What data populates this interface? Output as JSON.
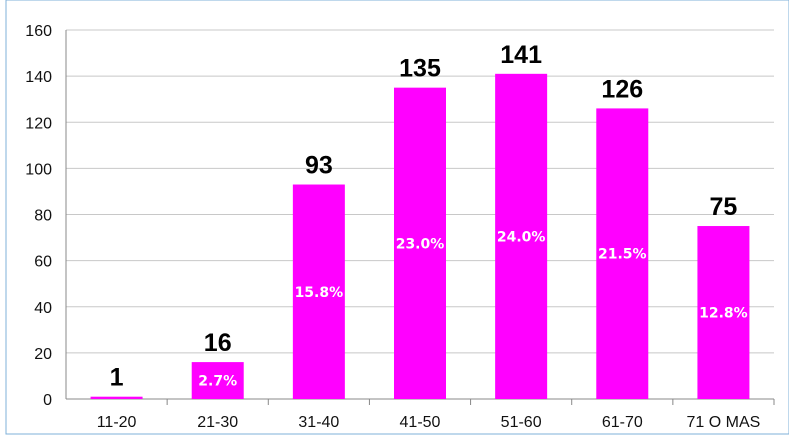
{
  "chart_data": {
    "type": "bar",
    "categories": [
      "11-20",
      "21-30",
      "31-40",
      "41-50",
      "51-60",
      "61-70",
      "71 O MAS"
    ],
    "values": [
      1,
      16,
      93,
      135,
      141,
      126,
      75
    ],
    "percent_labels": [
      "",
      "2.7%",
      "15.8%",
      "23.0%",
      "24.0%",
      "21.5%",
      "12.8%"
    ],
    "title": "",
    "xlabel": "",
    "ylabel": "",
    "ylim": [
      0,
      160
    ],
    "yticks": [
      0,
      20,
      40,
      60,
      80,
      100,
      120,
      140,
      160
    ],
    "grid": true,
    "legend": "none",
    "colors": {
      "bar": "#FF00FF",
      "grid": "#C8C8C8",
      "axis": "#888888",
      "frame": "#7FB0D8",
      "background": "#FFFFFF"
    }
  }
}
